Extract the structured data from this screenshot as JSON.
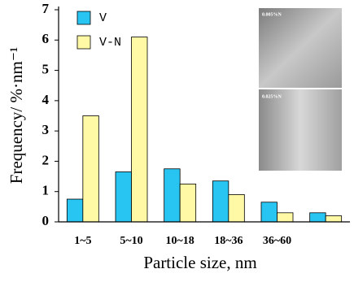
{
  "chart_data": {
    "type": "bar",
    "xlabel": "Particle size, nm",
    "ylabel": "Frequency/ %·nm⁻¹",
    "categories": [
      "1~5",
      "5~10",
      "10~18",
      "18~36",
      "36~60",
      null
    ],
    "series": [
      {
        "name": "V",
        "color": "#29c5f2",
        "values": [
          0.75,
          1.65,
          1.75,
          1.35,
          0.65,
          0.3
        ]
      },
      {
        "name": "V-N",
        "color": "#fff9a6",
        "values": [
          3.5,
          6.1,
          1.25,
          0.9,
          0.3,
          0.2
        ]
      }
    ],
    "ylim": [
      0,
      7
    ],
    "yticks": [
      0,
      1,
      2,
      3,
      4,
      5,
      6,
      7
    ],
    "grid": false,
    "annotations": [
      "0.005%N",
      "0.025%N"
    ]
  }
}
